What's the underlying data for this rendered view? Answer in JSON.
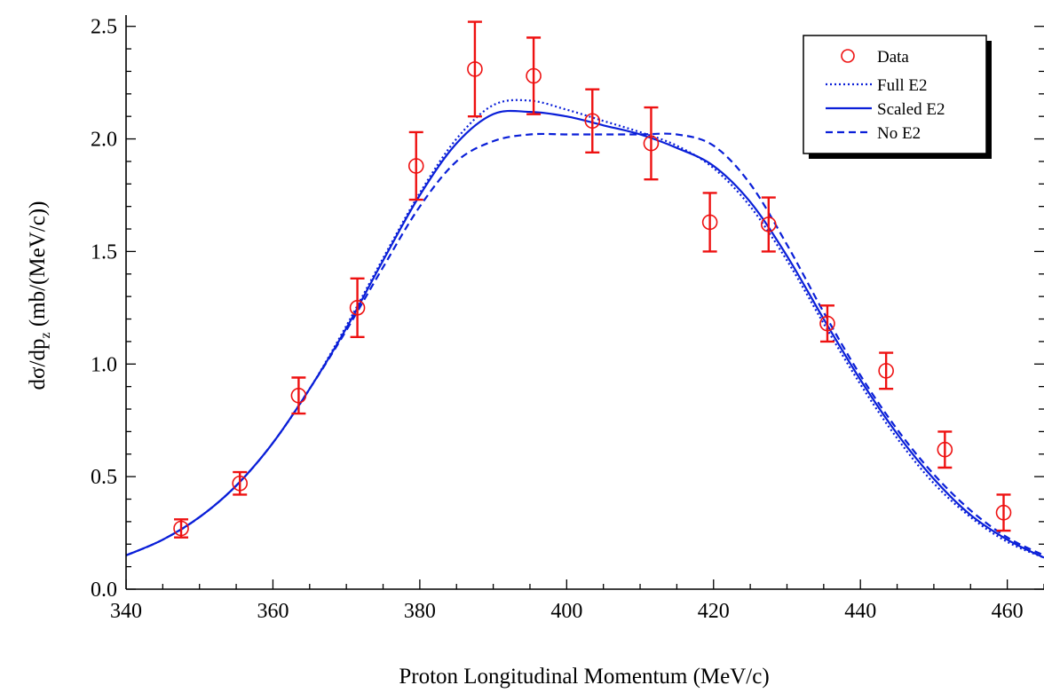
{
  "chart_data": {
    "type": "scatter",
    "title": "",
    "xlabel": "Proton Longitudinal Momentum (MeV/c)",
    "ylabel_parts": {
      "prefix": "dσ/dp",
      "subscript": "z",
      "suffix": " (mb/(MeV/c))"
    },
    "xlim": [
      340,
      465
    ],
    "ylim": [
      0,
      2.55
    ],
    "x_ticks": [
      340,
      360,
      380,
      400,
      420,
      440,
      460
    ],
    "x_tick_labels": [
      "340",
      "360",
      "380",
      "400",
      "420",
      "440",
      "460"
    ],
    "y_ticks": [
      0,
      0.5,
      1.0,
      1.5,
      2.0,
      2.5
    ],
    "y_tick_labels": [
      "0.0",
      "0.5",
      "1.0",
      "1.5",
      "2.0",
      "2.5"
    ],
    "grid": false,
    "legend_position": "top-right",
    "legend": [
      "Data",
      "Full E2",
      "Scaled E2",
      "No E2"
    ],
    "colors": {
      "data": "#ee1111",
      "curves": "#0a1fd8"
    },
    "data_series": {
      "name": "Data",
      "x": [
        347.5,
        355.5,
        363.5,
        371.5,
        379.5,
        387.5,
        395.5,
        403.5,
        411.5,
        419.5,
        427.5,
        435.5,
        443.5,
        451.5,
        459.5
      ],
      "y": [
        0.27,
        0.47,
        0.86,
        1.25,
        1.88,
        2.31,
        2.28,
        2.08,
        1.98,
        1.63,
        1.62,
        1.18,
        0.97,
        0.62,
        0.34
      ],
      "err_low": [
        0.04,
        0.05,
        0.08,
        0.13,
        0.15,
        0.21,
        0.17,
        0.14,
        0.16,
        0.13,
        0.12,
        0.08,
        0.08,
        0.08,
        0.08
      ],
      "err_high": [
        0.04,
        0.05,
        0.08,
        0.13,
        0.15,
        0.21,
        0.17,
        0.14,
        0.16,
        0.13,
        0.12,
        0.08,
        0.08,
        0.08,
        0.08
      ]
    },
    "curves": [
      {
        "name": "Full E2",
        "style": "dotted",
        "x": [
          340,
          345,
          350,
          355,
          360,
          365,
          370,
          375,
          380,
          385,
          390,
          395,
          400,
          405,
          410,
          415,
          420,
          425,
          430,
          435,
          440,
          445,
          450,
          455,
          460,
          465
        ],
        "y": [
          0.15,
          0.22,
          0.32,
          0.46,
          0.65,
          0.89,
          1.17,
          1.47,
          1.76,
          2.0,
          2.15,
          2.17,
          2.13,
          2.08,
          2.03,
          1.97,
          1.87,
          1.7,
          1.46,
          1.18,
          0.91,
          0.67,
          0.47,
          0.32,
          0.21,
          0.14
        ]
      },
      {
        "name": "Scaled E2",
        "style": "solid",
        "x": [
          340,
          345,
          350,
          355,
          360,
          365,
          370,
          375,
          380,
          385,
          390,
          395,
          400,
          405,
          410,
          415,
          420,
          425,
          430,
          435,
          440,
          445,
          450,
          455,
          460,
          465
        ],
        "y": [
          0.15,
          0.22,
          0.32,
          0.46,
          0.65,
          0.89,
          1.16,
          1.46,
          1.75,
          1.98,
          2.11,
          2.12,
          2.1,
          2.06,
          2.02,
          1.96,
          1.88,
          1.72,
          1.48,
          1.2,
          0.93,
          0.69,
          0.49,
          0.33,
          0.22,
          0.14
        ]
      },
      {
        "name": "No E2",
        "style": "dashed",
        "x": [
          340,
          345,
          350,
          355,
          360,
          365,
          370,
          375,
          380,
          385,
          390,
          395,
          400,
          405,
          410,
          415,
          420,
          425,
          430,
          435,
          440,
          445,
          450,
          455,
          460,
          465
        ],
        "y": [
          0.15,
          0.22,
          0.32,
          0.46,
          0.65,
          0.89,
          1.15,
          1.43,
          1.7,
          1.9,
          1.99,
          2.02,
          2.02,
          2.02,
          2.02,
          2.02,
          1.97,
          1.8,
          1.53,
          1.23,
          0.95,
          0.71,
          0.51,
          0.35,
          0.23,
          0.15
        ]
      }
    ]
  }
}
